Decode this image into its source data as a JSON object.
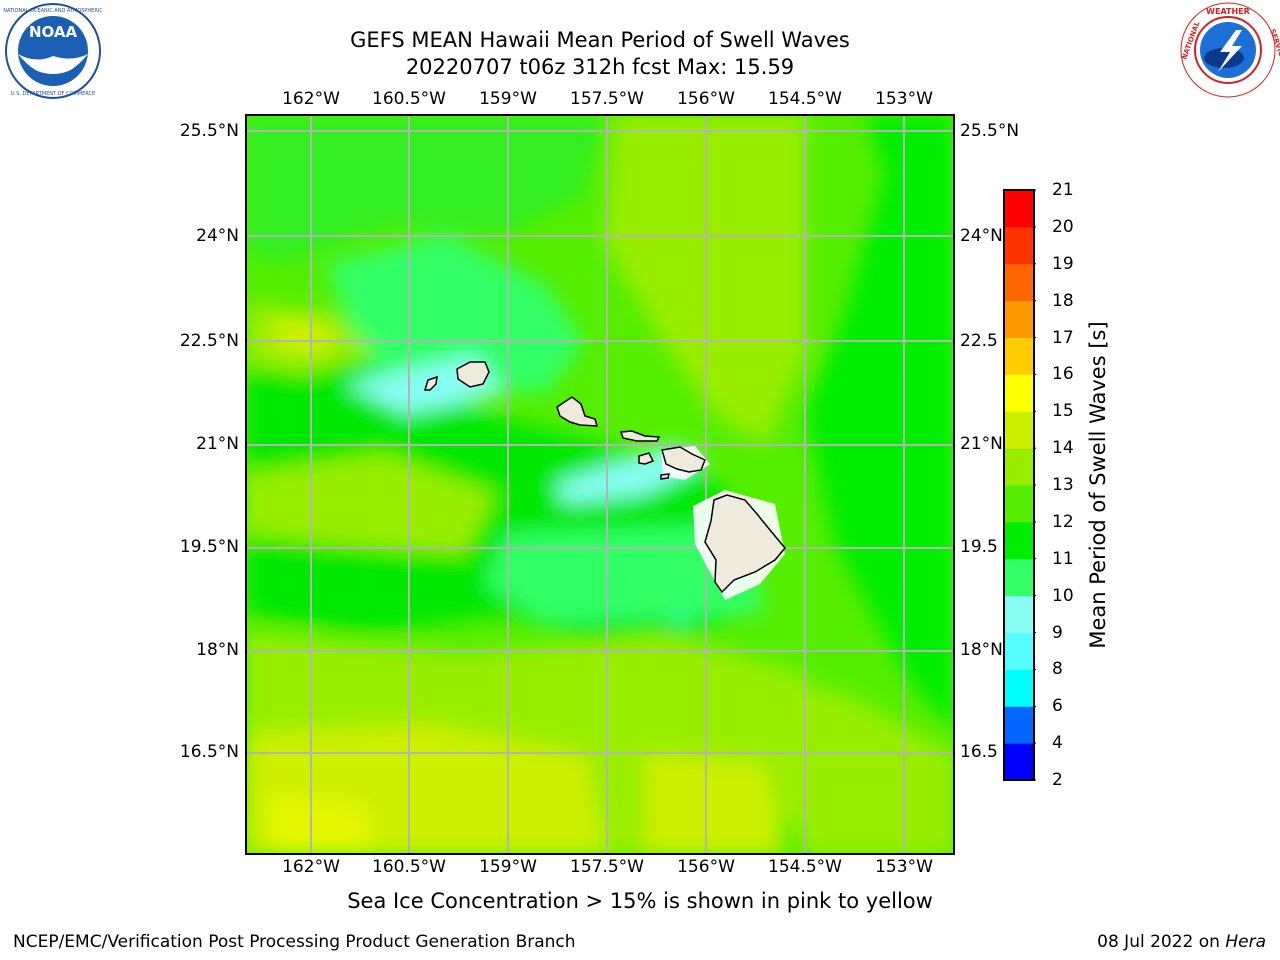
{
  "title": {
    "line1": "GEFS MEAN Hawaii Mean Period of Swell Waves",
    "line2": "20220707 t06z 312h fcst   Max: 15.59"
  },
  "logos": {
    "left": {
      "name": "noaa-logo",
      "text": "NOAA",
      "ring_text": "NATIONAL OCEANIC AND ATMOSPHERIC ADMINISTRATION · U.S. DEPARTMENT OF COMMERCE"
    },
    "right": {
      "name": "nws-logo",
      "ring_text": "NATIONAL WEATHER SERVICE"
    }
  },
  "map": {
    "lon_labels": [
      "162°W",
      "160.5°W",
      "159°W",
      "157.5°W",
      "156°W",
      "154.5°W",
      "153°W"
    ],
    "lat_labels_left": [
      "25.5°N",
      "24°N",
      "22.5°N",
      "21°N",
      "19.5°N",
      "18°N",
      "16.5°N"
    ],
    "lat_labels_right": [
      "25.5°N",
      "24°N",
      "22.5",
      "21°N",
      "19.5",
      "18°N",
      "16.5"
    ],
    "grid": true,
    "land_color": "#eeebdc"
  },
  "colorbar": {
    "title": "Mean Period of Swell Waves [s]",
    "bounds": [
      2,
      4,
      6,
      8,
      9,
      10,
      11,
      12,
      13,
      14,
      15,
      16,
      17,
      18,
      19,
      20,
      21
    ],
    "colors": [
      "#0000ff",
      "#0066ff",
      "#00ffff",
      "#55ffff",
      "#88fff4",
      "#33ff66",
      "#00ee00",
      "#55ee00",
      "#99ee00",
      "#ccf000",
      "#ffff00",
      "#ffcc00",
      "#ff9900",
      "#ff6600",
      "#ff3300",
      "#ff0000"
    ]
  },
  "caption": "Sea Ice Concentration > 15% is shown in pink to yellow",
  "footer": {
    "left": "NCEP/EMC/Verification Post Processing Product Generation Branch",
    "right_prefix": "08 Jul 2022 on ",
    "right_host": "Hera"
  }
}
